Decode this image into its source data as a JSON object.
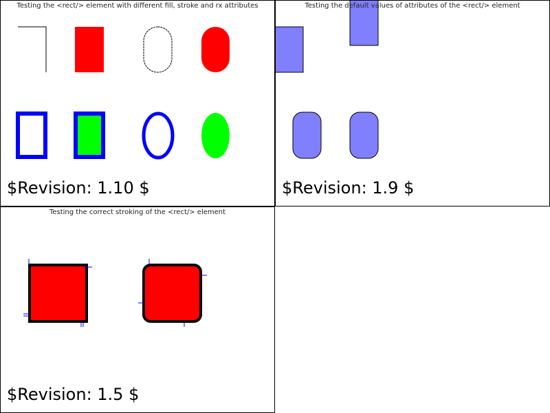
{
  "panels": [
    {
      "title": "Testing the <rect/> element with different fill, stroke and rx attributes",
      "revision": "$Revision: 1.10 $"
    },
    {
      "title": "Testing the default values of attributes of the <rect/> element",
      "revision": "$Revision: 1.9 $"
    },
    {
      "title": "Testing the correct stroking of the <rect/> element",
      "revision": "$Revision: 1.5 $"
    }
  ],
  "colors": {
    "red": "#ff0000",
    "blue": "#0000ff",
    "green": "#00ff00",
    "lightblue": "#8080ff"
  }
}
